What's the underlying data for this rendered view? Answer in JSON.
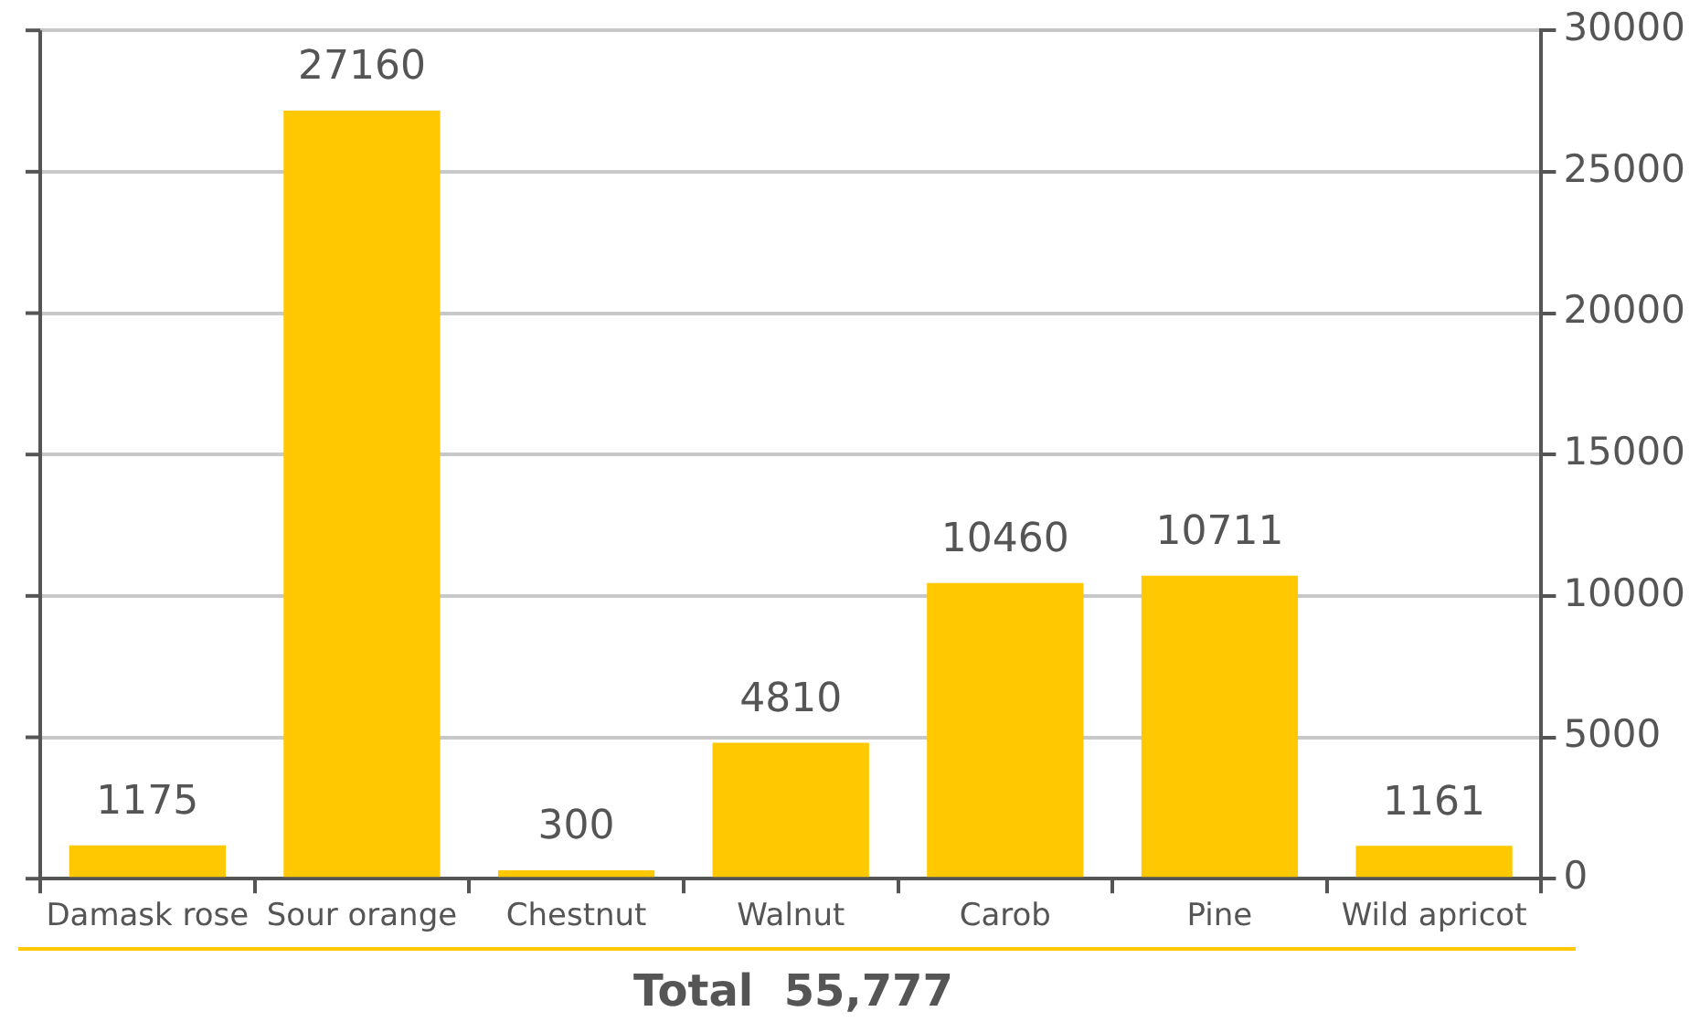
{
  "chart_data": {
    "type": "bar",
    "categories": [
      "Damask rose",
      "Sour orange",
      "Chestnut",
      "Walnut",
      "Carob",
      "Pine",
      "Wild apricot"
    ],
    "values": [
      1175,
      27160,
      300,
      4810,
      10460,
      10711,
      1161
    ],
    "color": "#ffc800",
    "ylim": [
      0,
      30000
    ],
    "yticks": [
      0,
      5000,
      10000,
      15000,
      20000,
      25000,
      30000
    ],
    "grid": "y",
    "legend": false,
    "data_labels": true,
    "annotations": [
      "Total  55,777"
    ]
  }
}
